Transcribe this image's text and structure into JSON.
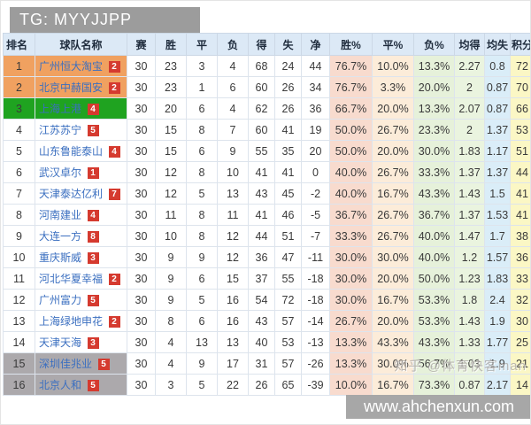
{
  "title_banner": "TG: MYYJJPP",
  "watermark": "知乎 @体育快客man",
  "footer_url": "www.ahchenxun.com",
  "colors": {
    "banner_bg": "#9c9c9c",
    "header_bg": "#dce9f6",
    "leader_highlight": "#f0a160",
    "acl_highlight": "#1fa320",
    "relegation_highlight": "#aca9ac",
    "badge_red": "#d53a2f",
    "team_blue": "#3b6fc0",
    "win_pct_col": "#f8dbce",
    "draw_pct_col": "#fcecd9",
    "loss_pct_col": "#e6f1da",
    "avg_gf_col": "#eaf4df",
    "avg_ga_col": "#daedf8",
    "points_col": "#fbf7c5"
  },
  "chart_data": {
    "type": "table",
    "title": "TG: MYYJJPP",
    "columns": [
      "排名",
      "球队名称",
      "赛",
      "胜",
      "平",
      "负",
      "得",
      "失",
      "净",
      "胜%",
      "平%",
      "负%",
      "均得",
      "均失",
      "积分"
    ],
    "rows": [
      {
        "rank": "1",
        "team": "广州恒大淘宝",
        "badge": "2",
        "highlight": "orange",
        "values": [
          "30",
          "23",
          "3",
          "4",
          "68",
          "24",
          "44",
          "76.7%",
          "10.0%",
          "13.3%",
          "2.27",
          "0.8",
          "72"
        ]
      },
      {
        "rank": "2",
        "team": "北京中赫国安",
        "badge": "2",
        "highlight": "orange",
        "values": [
          "30",
          "23",
          "1",
          "6",
          "60",
          "26",
          "34",
          "76.7%",
          "3.3%",
          "20.0%",
          "2",
          "0.87",
          "70"
        ]
      },
      {
        "rank": "3",
        "team": "上海上港",
        "badge": "4",
        "highlight": "green",
        "values": [
          "30",
          "20",
          "6",
          "4",
          "62",
          "26",
          "36",
          "66.7%",
          "20.0%",
          "13.3%",
          "2.07",
          "0.87",
          "66"
        ]
      },
      {
        "rank": "4",
        "team": "江苏苏宁",
        "badge": "5",
        "highlight": "none",
        "values": [
          "30",
          "15",
          "8",
          "7",
          "60",
          "41",
          "19",
          "50.0%",
          "26.7%",
          "23.3%",
          "2",
          "1.37",
          "53"
        ]
      },
      {
        "rank": "5",
        "team": "山东鲁能泰山",
        "badge": "4",
        "highlight": "none",
        "values": [
          "30",
          "15",
          "6",
          "9",
          "55",
          "35",
          "20",
          "50.0%",
          "20.0%",
          "30.0%",
          "1.83",
          "1.17",
          "51"
        ]
      },
      {
        "rank": "6",
        "team": "武汉卓尔",
        "badge": "1",
        "highlight": "none",
        "values": [
          "30",
          "12",
          "8",
          "10",
          "41",
          "41",
          "0",
          "40.0%",
          "26.7%",
          "33.3%",
          "1.37",
          "1.37",
          "44"
        ]
      },
      {
        "rank": "7",
        "team": "天津泰达亿利",
        "badge": "7",
        "highlight": "none",
        "values": [
          "30",
          "12",
          "5",
          "13",
          "43",
          "45",
          "-2",
          "40.0%",
          "16.7%",
          "43.3%",
          "1.43",
          "1.5",
          "41"
        ]
      },
      {
        "rank": "8",
        "team": "河南建业",
        "badge": "4",
        "highlight": "none",
        "values": [
          "30",
          "11",
          "8",
          "11",
          "41",
          "46",
          "-5",
          "36.7%",
          "26.7%",
          "36.7%",
          "1.37",
          "1.53",
          "41"
        ]
      },
      {
        "rank": "9",
        "team": "大连一方",
        "badge": "8",
        "highlight": "none",
        "values": [
          "30",
          "10",
          "8",
          "12",
          "44",
          "51",
          "-7",
          "33.3%",
          "26.7%",
          "40.0%",
          "1.47",
          "1.7",
          "38"
        ]
      },
      {
        "rank": "10",
        "team": "重庆斯威",
        "badge": "3",
        "highlight": "none",
        "values": [
          "30",
          "9",
          "9",
          "12",
          "36",
          "47",
          "-11",
          "30.0%",
          "30.0%",
          "40.0%",
          "1.2",
          "1.57",
          "36"
        ]
      },
      {
        "rank": "11",
        "team": "河北华夏幸福",
        "badge": "2",
        "highlight": "none",
        "values": [
          "30",
          "9",
          "6",
          "15",
          "37",
          "55",
          "-18",
          "30.0%",
          "20.0%",
          "50.0%",
          "1.23",
          "1.83",
          "33"
        ]
      },
      {
        "rank": "12",
        "team": "广州富力",
        "badge": "5",
        "highlight": "none",
        "values": [
          "30",
          "9",
          "5",
          "16",
          "54",
          "72",
          "-18",
          "30.0%",
          "16.7%",
          "53.3%",
          "1.8",
          "2.4",
          "32"
        ]
      },
      {
        "rank": "13",
        "team": "上海绿地申花",
        "badge": "2",
        "highlight": "none",
        "values": [
          "30",
          "8",
          "6",
          "16",
          "43",
          "57",
          "-14",
          "26.7%",
          "20.0%",
          "53.3%",
          "1.43",
          "1.9",
          "30"
        ]
      },
      {
        "rank": "14",
        "team": "天津天海",
        "badge": "3",
        "highlight": "none",
        "values": [
          "30",
          "4",
          "13",
          "13",
          "40",
          "53",
          "-13",
          "13.3%",
          "43.3%",
          "43.3%",
          "1.33",
          "1.77",
          "25"
        ]
      },
      {
        "rank": "15",
        "team": "深圳佳兆业",
        "badge": "5",
        "highlight": "gray",
        "values": [
          "30",
          "4",
          "9",
          "17",
          "31",
          "57",
          "-26",
          "13.3%",
          "30.0%",
          "56.7%",
          "1.03",
          "1.9",
          "21"
        ]
      },
      {
        "rank": "16",
        "team": "北京人和",
        "badge": "5",
        "highlight": "gray",
        "values": [
          "30",
          "3",
          "5",
          "22",
          "26",
          "65",
          "-39",
          "10.0%",
          "16.7%",
          "73.3%",
          "0.87",
          "2.17",
          "14"
        ]
      }
    ]
  }
}
